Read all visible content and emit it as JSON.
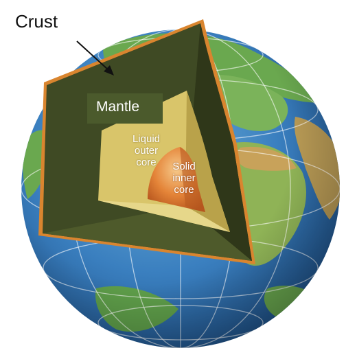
{
  "labels": {
    "crust": "Crust",
    "mantle": "Mantle",
    "outer_core": "Liquid\nouter\ncore",
    "inner_core": "Solid\ninner\ncore"
  },
  "colors": {
    "ocean": "#2f6fb3",
    "land": "#6aa84f",
    "desert": "#c8a25a",
    "mantle": "#3f4a24",
    "outer_core": "#d9c56a",
    "inner_core": "#e0792e",
    "crust_rim": "#d9852f"
  }
}
